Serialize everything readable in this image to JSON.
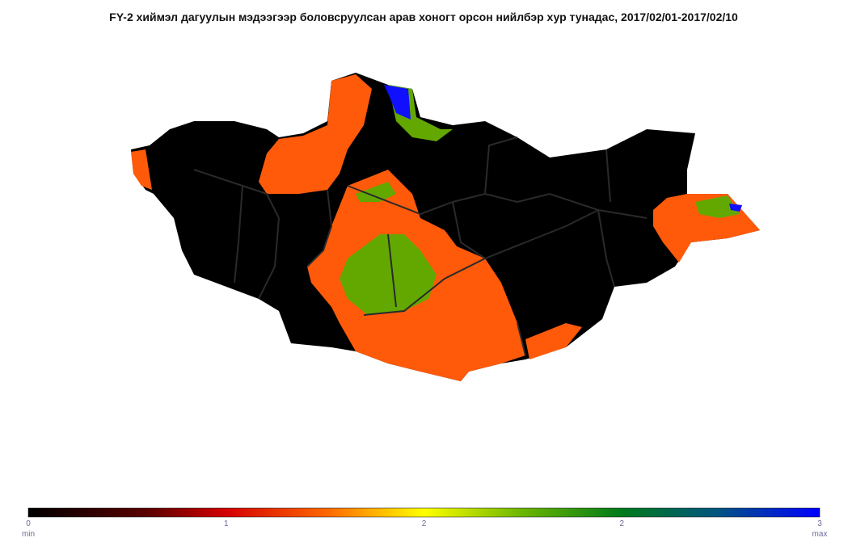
{
  "title": "FY-2 хиймэл дагуулын мэдээгээр боловсруулсан арав хоногт орсон нийлбэр хур тунадас, 2017/02/01-2017/02/10",
  "legend": {
    "ticks": [
      "0",
      "1",
      "2",
      "2",
      "3"
    ],
    "min_label": "min",
    "max_label": "max"
  }
}
